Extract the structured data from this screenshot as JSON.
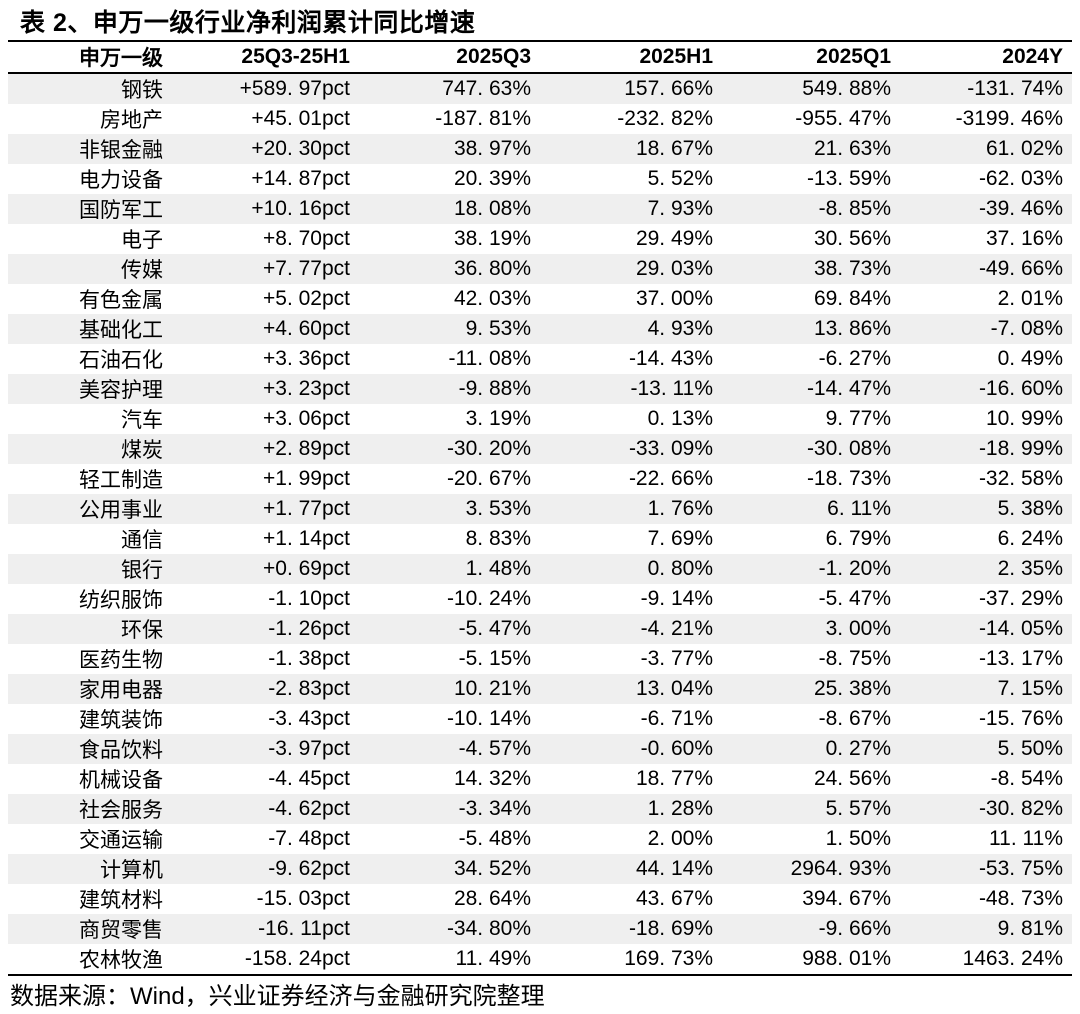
{
  "title": "表 2、申万一级行业净利润累计同比增速",
  "colors": {
    "row_stripe": "#efefef",
    "border": "#000000",
    "text": "#000000",
    "background": "#ffffff"
  },
  "table": {
    "columns": [
      "申万一级",
      "25Q3-25H1",
      "2025Q3",
      "2025H1",
      "2025Q1",
      "2024Y"
    ],
    "rows": [
      [
        "钢铁",
        "+589. 97pct",
        "747. 63%",
        "157. 66%",
        "549. 88%",
        "-131. 74%"
      ],
      [
        "房地产",
        "+45. 01pct",
        "-187. 81%",
        "-232. 82%",
        "-955. 47%",
        "-3199. 46%"
      ],
      [
        "非银金融",
        "+20. 30pct",
        "38. 97%",
        "18. 67%",
        "21. 63%",
        "61. 02%"
      ],
      [
        "电力设备",
        "+14. 87pct",
        "20. 39%",
        "5. 52%",
        "-13. 59%",
        "-62. 03%"
      ],
      [
        "国防军工",
        "+10. 16pct",
        "18. 08%",
        "7. 93%",
        "-8. 85%",
        "-39. 46%"
      ],
      [
        "电子",
        "+8. 70pct",
        "38. 19%",
        "29. 49%",
        "30. 56%",
        "37. 16%"
      ],
      [
        "传媒",
        "+7. 77pct",
        "36. 80%",
        "29. 03%",
        "38. 73%",
        "-49. 66%"
      ],
      [
        "有色金属",
        "+5. 02pct",
        "42. 03%",
        "37. 00%",
        "69. 84%",
        "2. 01%"
      ],
      [
        "基础化工",
        "+4. 60pct",
        "9. 53%",
        "4. 93%",
        "13. 86%",
        "-7. 08%"
      ],
      [
        "石油石化",
        "+3. 36pct",
        "-11. 08%",
        "-14. 43%",
        "-6. 27%",
        "0. 49%"
      ],
      [
        "美容护理",
        "+3. 23pct",
        "-9. 88%",
        "-13. 11%",
        "-14. 47%",
        "-16. 60%"
      ],
      [
        "汽车",
        "+3. 06pct",
        "3. 19%",
        "0. 13%",
        "9. 77%",
        "10. 99%"
      ],
      [
        "煤炭",
        "+2. 89pct",
        "-30. 20%",
        "-33. 09%",
        "-30. 08%",
        "-18. 99%"
      ],
      [
        "轻工制造",
        "+1. 99pct",
        "-20. 67%",
        "-22. 66%",
        "-18. 73%",
        "-32. 58%"
      ],
      [
        "公用事业",
        "+1. 77pct",
        "3. 53%",
        "1. 76%",
        "6. 11%",
        "5. 38%"
      ],
      [
        "通信",
        "+1. 14pct",
        "8. 83%",
        "7. 69%",
        "6. 79%",
        "6. 24%"
      ],
      [
        "银行",
        "+0. 69pct",
        "1. 48%",
        "0. 80%",
        "-1. 20%",
        "2. 35%"
      ],
      [
        "纺织服饰",
        "-1. 10pct",
        "-10. 24%",
        "-9. 14%",
        "-5. 47%",
        "-37. 29%"
      ],
      [
        "环保",
        "-1. 26pct",
        "-5. 47%",
        "-4. 21%",
        "3. 00%",
        "-14. 05%"
      ],
      [
        "医药生物",
        "-1. 38pct",
        "-5. 15%",
        "-3. 77%",
        "-8. 75%",
        "-13. 17%"
      ],
      [
        "家用电器",
        "-2. 83pct",
        "10. 21%",
        "13. 04%",
        "25. 38%",
        "7. 15%"
      ],
      [
        "建筑装饰",
        "-3. 43pct",
        "-10. 14%",
        "-6. 71%",
        "-8. 67%",
        "-15. 76%"
      ],
      [
        "食品饮料",
        "-3. 97pct",
        "-4. 57%",
        "-0. 60%",
        "0. 27%",
        "5. 50%"
      ],
      [
        "机械设备",
        "-4. 45pct",
        "14. 32%",
        "18. 77%",
        "24. 56%",
        "-8. 54%"
      ],
      [
        "社会服务",
        "-4. 62pct",
        "-3. 34%",
        "1. 28%",
        "5. 57%",
        "-30. 82%"
      ],
      [
        "交通运输",
        "-7. 48pct",
        "-5. 48%",
        "2. 00%",
        "1. 50%",
        "11. 11%"
      ],
      [
        "计算机",
        "-9. 62pct",
        "34. 52%",
        "44. 14%",
        "2964. 93%",
        "-53. 75%"
      ],
      [
        "建筑材料",
        "-15. 03pct",
        "28. 64%",
        "43. 67%",
        "394. 67%",
        "-48. 73%"
      ],
      [
        "商贸零售",
        "-16. 11pct",
        "-34. 80%",
        "-18. 69%",
        "-9. 66%",
        "9. 81%"
      ],
      [
        "农林牧渔",
        "-158. 24pct",
        "11. 49%",
        "169. 73%",
        "988. 01%",
        "1463. 24%"
      ]
    ]
  },
  "footer": {
    "source_note": "数据来源：Wind，兴业证券经济与金融研究院整理"
  }
}
